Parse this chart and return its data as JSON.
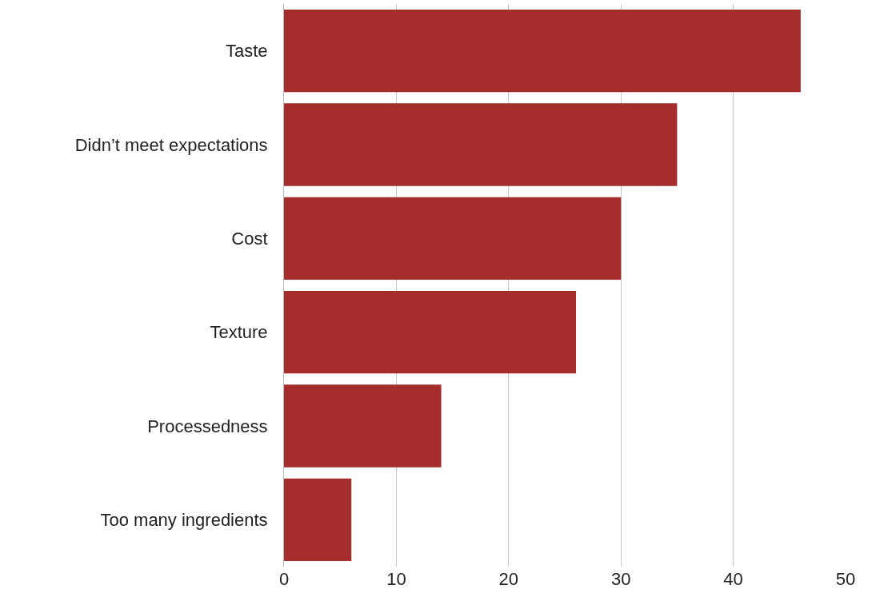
{
  "chart_data": {
    "type": "bar",
    "orientation": "horizontal",
    "categories": [
      "Taste",
      "Didn’t meet expectations",
      "Cost",
      "Texture",
      "Processedness",
      "Too many ingredients"
    ],
    "values": [
      46,
      35,
      30,
      26,
      14,
      6
    ],
    "color": "#a52d2b",
    "xlim": [
      0,
      50
    ],
    "xticks": [
      0,
      10,
      20,
      30,
      40,
      50
    ],
    "grid": "x",
    "legend": false
  }
}
